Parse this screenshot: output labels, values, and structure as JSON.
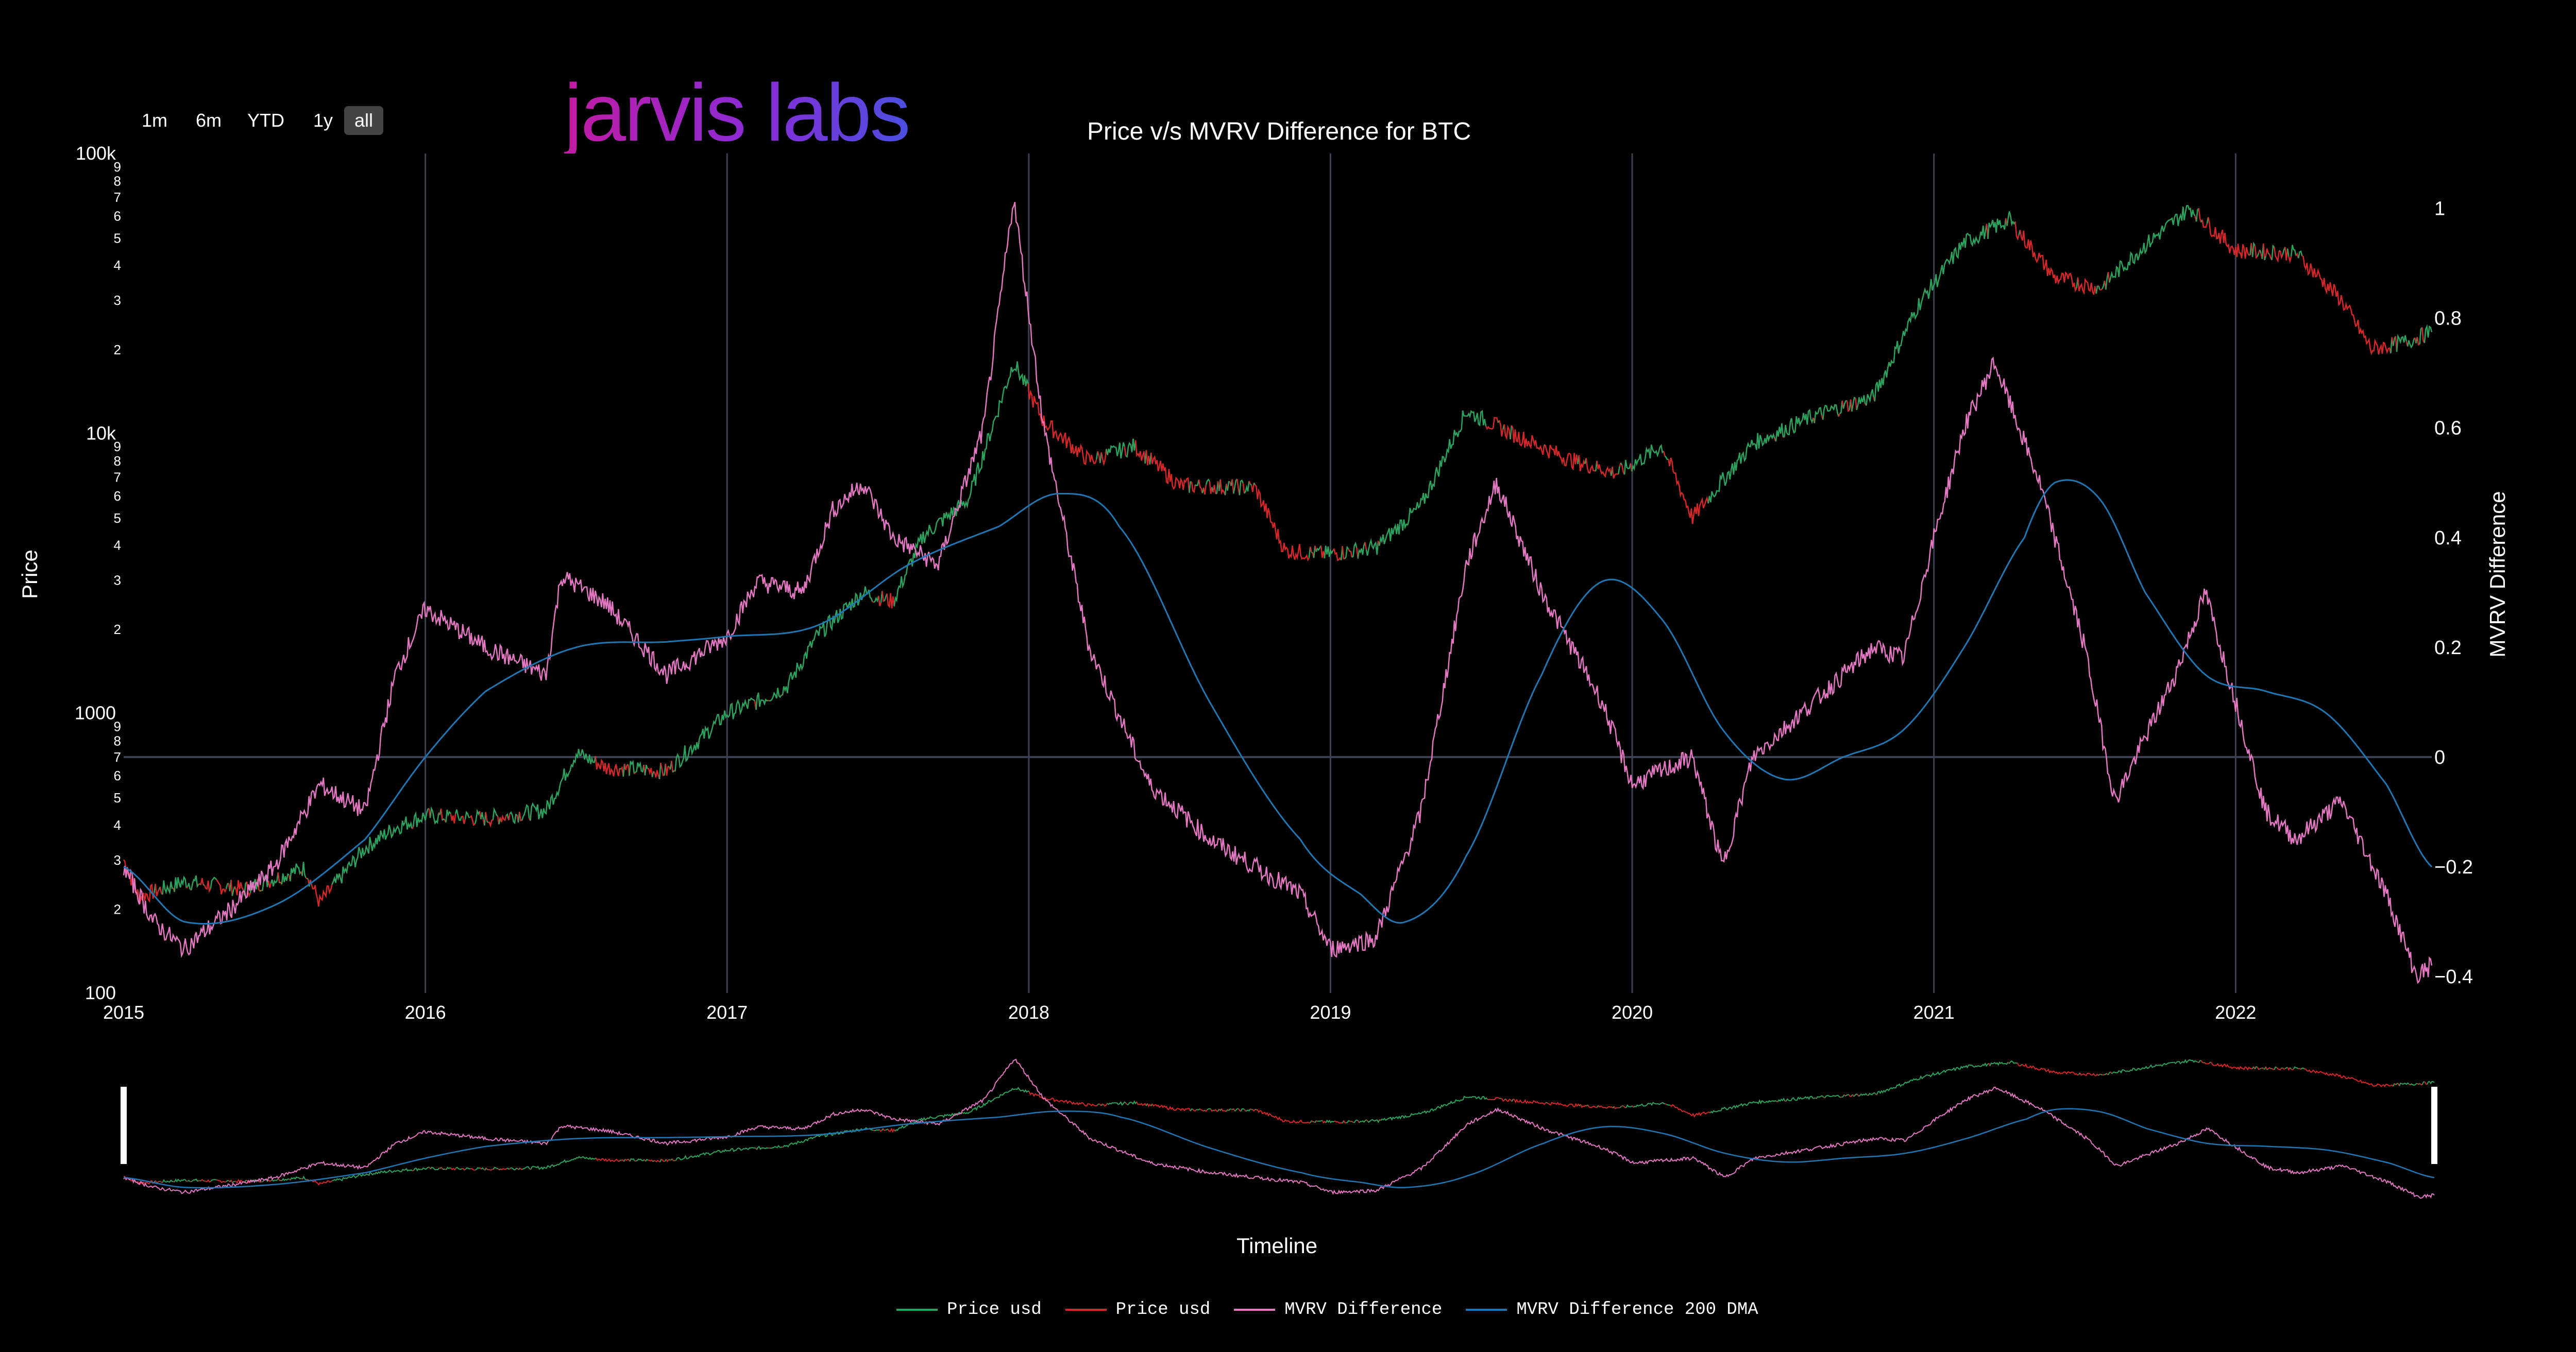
{
  "range_buttons": [
    {
      "label": "1m",
      "active": false
    },
    {
      "label": "6m",
      "active": false
    },
    {
      "label": "YTD",
      "active": false
    },
    {
      "label": "1y",
      "active": false
    },
    {
      "label": "all",
      "active": true
    }
  ],
  "logo_text": "jarvis labs",
  "colors": {
    "background": "#000000",
    "price_up": "#2ca25f",
    "price_down": "#d62728",
    "mvrv": "#e377c2",
    "dma": "#1f77b4",
    "grid": "#3b4255"
  },
  "chart_data": {
    "type": "line",
    "title": "Price v/s MVRV Difference for BTC",
    "xlabel": "",
    "ylabel_left": "Price",
    "ylabel_right": "MVRV Difference",
    "x_range": [
      2015.0,
      2022.65
    ],
    "y_left_scale": "log",
    "y_left_range": [
      100,
      100000
    ],
    "y_left_major_ticks": [
      "100",
      "1000",
      "10k",
      "100k"
    ],
    "y_left_minor_ticks": [
      "2",
      "3",
      "4",
      "5",
      "6",
      "7",
      "8",
      "9"
    ],
    "y_right_range": [
      -0.43,
      1.1
    ],
    "y_right_ticks": [
      "−0.4",
      "−0.2",
      "0",
      "0.2",
      "0.4",
      "0.6",
      "0.8",
      "1"
    ],
    "x_ticks": [
      "2015",
      "2016",
      "2017",
      "2018",
      "2019",
      "2020",
      "2021",
      "2022"
    ],
    "grid": "vertical at years, horizontal at MVRV 0",
    "legend_position": "bottom",
    "range_slider_label": "Timeline",
    "series": [
      {
        "name": "Price usd",
        "color": "#2ca25f",
        "role": "price rising"
      },
      {
        "name": "Price usd",
        "color": "#d62728",
        "role": "price falling"
      },
      {
        "name": "MVRV Difference",
        "color": "#e377c2",
        "axis": "right",
        "points": [
          [
            2015.0,
            -0.2
          ],
          [
            2015.1,
            -0.3
          ],
          [
            2015.2,
            -0.35
          ],
          [
            2015.35,
            -0.28
          ],
          [
            2015.5,
            -0.2
          ],
          [
            2015.65,
            -0.05
          ],
          [
            2015.8,
            -0.1
          ],
          [
            2015.9,
            0.15
          ],
          [
            2016.0,
            0.27
          ],
          [
            2016.2,
            0.2
          ],
          [
            2016.4,
            0.15
          ],
          [
            2016.45,
            0.33
          ],
          [
            2016.6,
            0.28
          ],
          [
            2016.8,
            0.15
          ],
          [
            2017.0,
            0.22
          ],
          [
            2017.1,
            0.32
          ],
          [
            2017.25,
            0.3
          ],
          [
            2017.35,
            0.45
          ],
          [
            2017.45,
            0.5
          ],
          [
            2017.55,
            0.4
          ],
          [
            2017.7,
            0.35
          ],
          [
            2017.85,
            0.6
          ],
          [
            2017.95,
            1.02
          ],
          [
            2018.05,
            0.6
          ],
          [
            2018.2,
            0.2
          ],
          [
            2018.4,
            -0.05
          ],
          [
            2018.6,
            -0.15
          ],
          [
            2018.9,
            -0.25
          ],
          [
            2019.0,
            -0.35
          ],
          [
            2019.15,
            -0.33
          ],
          [
            2019.3,
            -0.1
          ],
          [
            2019.45,
            0.35
          ],
          [
            2019.55,
            0.5
          ],
          [
            2019.7,
            0.3
          ],
          [
            2019.9,
            0.1
          ],
          [
            2020.0,
            -0.05
          ],
          [
            2020.2,
            0.0
          ],
          [
            2020.3,
            -0.2
          ],
          [
            2020.4,
            0.0
          ],
          [
            2020.6,
            0.1
          ],
          [
            2020.8,
            0.2
          ],
          [
            2020.9,
            0.18
          ],
          [
            2021.0,
            0.4
          ],
          [
            2021.1,
            0.6
          ],
          [
            2021.2,
            0.72
          ],
          [
            2021.35,
            0.5
          ],
          [
            2021.5,
            0.2
          ],
          [
            2021.6,
            -0.08
          ],
          [
            2021.8,
            0.15
          ],
          [
            2021.9,
            0.3
          ],
          [
            2022.0,
            0.1
          ],
          [
            2022.1,
            -0.1
          ],
          [
            2022.2,
            -0.15
          ],
          [
            2022.35,
            -0.08
          ],
          [
            2022.5,
            -0.25
          ],
          [
            2022.6,
            -0.4
          ],
          [
            2022.65,
            -0.38
          ]
        ]
      },
      {
        "name": "MVRV Difference 200 DMA",
        "color": "#1f77b4",
        "axis": "right",
        "points": [
          [
            2015.0,
            -0.2
          ],
          [
            2015.2,
            -0.3
          ],
          [
            2015.5,
            -0.27
          ],
          [
            2015.8,
            -0.15
          ],
          [
            2016.0,
            0.0
          ],
          [
            2016.2,
            0.12
          ],
          [
            2016.5,
            0.2
          ],
          [
            2016.8,
            0.21
          ],
          [
            2017.0,
            0.22
          ],
          [
            2017.3,
            0.24
          ],
          [
            2017.6,
            0.35
          ],
          [
            2017.9,
            0.42
          ],
          [
            2018.1,
            0.48
          ],
          [
            2018.3,
            0.42
          ],
          [
            2018.6,
            0.1
          ],
          [
            2018.9,
            -0.15
          ],
          [
            2019.1,
            -0.25
          ],
          [
            2019.25,
            -0.3
          ],
          [
            2019.45,
            -0.18
          ],
          [
            2019.7,
            0.15
          ],
          [
            2019.9,
            0.32
          ],
          [
            2020.1,
            0.25
          ],
          [
            2020.3,
            0.05
          ],
          [
            2020.5,
            -0.04
          ],
          [
            2020.7,
            0.0
          ],
          [
            2020.9,
            0.05
          ],
          [
            2021.1,
            0.2
          ],
          [
            2021.3,
            0.4
          ],
          [
            2021.4,
            0.5
          ],
          [
            2021.55,
            0.47
          ],
          [
            2021.7,
            0.3
          ],
          [
            2021.9,
            0.15
          ],
          [
            2022.1,
            0.12
          ],
          [
            2022.3,
            0.08
          ],
          [
            2022.5,
            -0.05
          ],
          [
            2022.65,
            -0.2
          ]
        ]
      }
    ],
    "price_points": [
      [
        2015.0,
        300
      ],
      [
        2015.05,
        220
      ],
      [
        2015.2,
        250
      ],
      [
        2015.4,
        235
      ],
      [
        2015.6,
        280
      ],
      [
        2015.65,
        210
      ],
      [
        2015.8,
        330
      ],
      [
        2015.9,
        390
      ],
      [
        2016.0,
        430
      ],
      [
        2016.2,
        420
      ],
      [
        2016.4,
        450
      ],
      [
        2016.5,
        720
      ],
      [
        2016.6,
        640
      ],
      [
        2016.8,
        620
      ],
      [
        2017.0,
        1000
      ],
      [
        2017.1,
        1100
      ],
      [
        2017.2,
        1250
      ],
      [
        2017.3,
        1900
      ],
      [
        2017.45,
        2700
      ],
      [
        2017.55,
        2500
      ],
      [
        2017.65,
        4300
      ],
      [
        2017.8,
        5800
      ],
      [
        2017.95,
        18000
      ],
      [
        2018.05,
        11000
      ],
      [
        2018.2,
        8000
      ],
      [
        2018.35,
        9000
      ],
      [
        2018.5,
        6500
      ],
      [
        2018.75,
        6400
      ],
      [
        2018.85,
        3800
      ],
      [
        2019.0,
        3700
      ],
      [
        2019.15,
        3900
      ],
      [
        2019.3,
        5500
      ],
      [
        2019.45,
        12000
      ],
      [
        2019.6,
        10000
      ],
      [
        2019.8,
        8000
      ],
      [
        2019.95,
        7200
      ],
      [
        2020.1,
        9000
      ],
      [
        2020.2,
        5000
      ],
      [
        2020.4,
        9200
      ],
      [
        2020.6,
        11500
      ],
      [
        2020.8,
        13500
      ],
      [
        2020.95,
        29000
      ],
      [
        2021.1,
        48000
      ],
      [
        2021.25,
        58000
      ],
      [
        2021.4,
        36000
      ],
      [
        2021.55,
        33000
      ],
      [
        2021.7,
        47000
      ],
      [
        2021.85,
        64000
      ],
      [
        2022.0,
        45000
      ],
      [
        2022.2,
        44000
      ],
      [
        2022.35,
        30000
      ],
      [
        2022.45,
        20000
      ],
      [
        2022.55,
        21000
      ],
      [
        2022.65,
        23000
      ]
    ]
  },
  "legend": [
    {
      "label": "Price usd",
      "color": "#2ca25f"
    },
    {
      "label": "Price usd",
      "color": "#d62728"
    },
    {
      "label": "MVRV Difference",
      "color": "#e377c2"
    },
    {
      "label": "MVRV Difference 200 DMA",
      "color": "#1f77b4"
    }
  ]
}
